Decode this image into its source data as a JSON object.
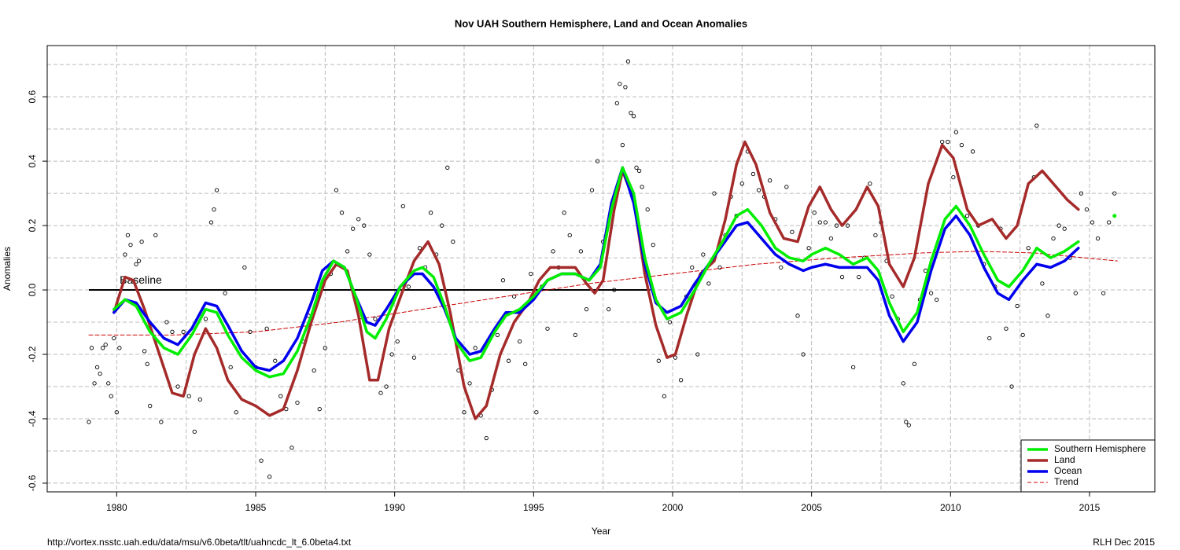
{
  "chart_data": {
    "type": "line",
    "title": "Nov UAH Southern Hemisphere, Land and Ocean Anomalies",
    "xlabel": "Year",
    "ylabel": "Anomalies",
    "source": "http://vortex.nsstc.uah.edu/data/msu/v6.0beta/tlt/uahncdc_lt_6.0beta4.txt",
    "credit": "RLH Dec 2015",
    "xlim": [
      1977.5,
      2017.35
    ],
    "ylim": [
      -0.627,
      0.759
    ],
    "xticks": [
      1980,
      1985,
      1990,
      1995,
      2000,
      2005,
      2010,
      2015
    ],
    "yticks": [
      -0.6,
      -0.4,
      -0.2,
      {
        "value": 0,
        "label": "0.0"
      },
      0.2,
      0.4,
      0.6
    ],
    "grid": true,
    "xgrid": [
      1977.5,
      1980,
      1982.5,
      1985,
      1987.5,
      1990,
      1992.5,
      1995,
      1997.5,
      2000,
      2002.5,
      2005,
      2007.5,
      2010,
      2012.5,
      2015
    ],
    "ygrid": [
      -0.6,
      -0.5,
      -0.4,
      -0.3,
      -0.2,
      -0.1,
      0,
      0.1,
      0.2,
      0.3,
      0.4,
      0.5,
      0.6,
      0.7
    ],
    "legend": "bottom-right",
    "baseline": {
      "label": "Baseline",
      "y": 0,
      "x": [
        1979,
        1999.2
      ],
      "color": "#000000"
    },
    "points": {
      "color": "#000000",
      "x": [
        1979.0,
        1979.1,
        1979.2,
        1979.3,
        1979.4,
        1979.5,
        1979.6,
        1979.7,
        1979.8,
        1979.9,
        1980.0,
        1980.1,
        1980.3,
        1980.4,
        1980.5,
        1980.7,
        1980.8,
        1980.9,
        1981.0,
        1981.1,
        1981.2,
        1981.4,
        1981.6,
        1981.8,
        1982.0,
        1982.2,
        1982.4,
        1982.6,
        1982.8,
        1983.0,
        1983.2,
        1983.4,
        1983.5,
        1983.6,
        1983.9,
        1984.1,
        1984.3,
        1984.6,
        1984.8,
        1985.0,
        1985.2,
        1985.4,
        1985.5,
        1985.7,
        1985.9,
        1986.1,
        1986.3,
        1986.5,
        1986.7,
        1986.9,
        1987.1,
        1987.3,
        1987.5,
        1987.7,
        1987.9,
        1988.1,
        1988.3,
        1988.5,
        1988.7,
        1988.9,
        1989.1,
        1989.3,
        1989.5,
        1989.7,
        1989.9,
        1990.1,
        1990.3,
        1990.5,
        1990.7,
        1990.9,
        1991.1,
        1991.3,
        1991.5,
        1991.7,
        1991.9,
        1992.1,
        1992.3,
        1992.5,
        1992.7,
        1992.9,
        1993.1,
        1993.3,
        1993.5,
        1993.7,
        1993.9,
        1994.1,
        1994.3,
        1994.5,
        1994.7,
        1994.9,
        1995.1,
        1995.3,
        1995.5,
        1995.7,
        1995.9,
        1996.1,
        1996.3,
        1996.5,
        1996.7,
        1996.9,
        1997.1,
        1997.3,
        1997.5,
        1997.7,
        1997.9,
        1998.0,
        1998.1,
        1998.2,
        1998.3,
        1998.4,
        1998.5,
        1998.6,
        1998.7,
        1998.8,
        1998.9,
        1999.1,
        1999.3,
        1999.5,
        1999.7,
        1999.9,
        2000.1,
        2000.3,
        2000.5,
        2000.7,
        2000.9,
        2001.1,
        2001.3,
        2001.5,
        2001.7,
        2001.9,
        2002.1,
        2002.3,
        2002.5,
        2002.7,
        2002.9,
        2003.1,
        2003.3,
        2003.5,
        2003.7,
        2003.9,
        2004.1,
        2004.3,
        2004.5,
        2004.7,
        2004.9,
        2005.1,
        2005.3,
        2005.5,
        2005.7,
        2005.9,
        2006.1,
        2006.3,
        2006.5,
        2006.7,
        2006.9,
        2007.1,
        2007.3,
        2007.5,
        2007.7,
        2007.9,
        2008.1,
        2008.3,
        2008.4,
        2008.5,
        2008.7,
        2008.9,
        2009.1,
        2009.3,
        2009.5,
        2009.7,
        2009.9,
        2010.1,
        2010.2,
        2010.4,
        2010.6,
        2010.8,
        2011.0,
        2011.2,
        2011.4,
        2011.6,
        2011.8,
        2012.0,
        2012.2,
        2012.4,
        2012.6,
        2012.8,
        2013.0,
        2013.1,
        2013.3,
        2013.5,
        2013.7,
        2013.9,
        2014.1,
        2014.3,
        2014.5,
        2014.7,
        2014.9,
        2015.1,
        2015.3,
        2015.5,
        2015.7,
        2015.9
      ],
      "values": [
        -0.41,
        -0.18,
        -0.29,
        -0.24,
        -0.26,
        -0.18,
        -0.17,
        -0.29,
        -0.33,
        -0.15,
        -0.38,
        -0.18,
        0.11,
        0.17,
        0.14,
        0.08,
        0.09,
        0.15,
        -0.19,
        -0.23,
        -0.36,
        0.17,
        -0.41,
        -0.1,
        -0.13,
        -0.3,
        -0.13,
        -0.33,
        -0.44,
        -0.34,
        -0.09,
        0.21,
        0.25,
        0.31,
        -0.01,
        -0.24,
        -0.38,
        0.07,
        -0.13,
        -0.24,
        -0.53,
        -0.12,
        -0.58,
        -0.22,
        -0.33,
        -0.37,
        -0.49,
        -0.35,
        -0.16,
        -0.08,
        -0.25,
        -0.37,
        -0.18,
        0.05,
        0.31,
        0.24,
        0.12,
        0.19,
        0.22,
        0.2,
        0.11,
        -0.09,
        -0.32,
        -0.3,
        -0.2,
        -0.16,
        0.26,
        0.01,
        -0.21,
        0.13,
        0.07,
        0.24,
        0.11,
        0.2,
        0.38,
        0.15,
        -0.25,
        -0.38,
        -0.29,
        -0.18,
        -0.39,
        -0.46,
        -0.31,
        -0.14,
        0.03,
        -0.22,
        -0.02,
        -0.16,
        -0.23,
        0.05,
        -0.38,
        0.01,
        -0.12,
        0.12,
        0.07,
        0.24,
        0.17,
        -0.14,
        0.12,
        -0.06,
        0.31,
        0.4,
        0.15,
        -0.06,
        0.0,
        0.58,
        0.64,
        0.45,
        0.63,
        0.71,
        0.55,
        0.54,
        0.38,
        0.37,
        0.32,
        0.25,
        0.14,
        -0.22,
        -0.33,
        -0.1,
        -0.21,
        -0.28,
        -0.02,
        0.07,
        -0.2,
        0.11,
        0.02,
        0.3,
        0.07,
        0.17,
        0.29,
        0.23,
        0.33,
        0.43,
        0.36,
        0.31,
        0.29,
        0.34,
        0.22,
        0.07,
        0.32,
        0.18,
        -0.08,
        -0.2,
        0.13,
        0.24,
        0.21,
        0.21,
        0.16,
        0.2,
        0.04,
        0.2,
        -0.24,
        0.04,
        0.1,
        0.33,
        0.17,
        0.21,
        0.09,
        -0.02,
        -0.09,
        -0.29,
        -0.41,
        -0.42,
        -0.23,
        -0.03,
        0.06,
        -0.01,
        -0.03,
        0.46,
        0.46,
        0.35,
        0.49,
        0.45,
        0.23,
        0.43,
        0.2,
        0.08,
        -0.15,
        0.01,
        0.19,
        -0.12,
        -0.3,
        -0.05,
        -0.14,
        0.13,
        0.35,
        0.51,
        0.02,
        -0.08,
        0.16,
        0.2,
        0.19,
        0.1,
        -0.01,
        0.3,
        0.25,
        0.21,
        0.16,
        -0.01,
        0.21,
        0.3
      ]
    },
    "series": [
      {
        "name": "Southern Hemisphere",
        "color": "#00ee00",
        "width": 3.5,
        "x": [
          1979.9,
          1980.3,
          1980.7,
          1981.2,
          1981.7,
          1982.2,
          1982.7,
          1983.2,
          1983.6,
          1984.0,
          1984.5,
          1985.0,
          1985.5,
          1986.0,
          1986.5,
          1987.0,
          1987.4,
          1987.8,
          1988.2,
          1988.6,
          1989.0,
          1989.3,
          1989.7,
          1990.2,
          1990.7,
          1991.0,
          1991.4,
          1991.8,
          1992.2,
          1992.7,
          1993.1,
          1993.6,
          1994.0,
          1994.5,
          1995.0,
          1995.5,
          1996.0,
          1996.5,
          1997.0,
          1997.4,
          1997.8,
          1998.2,
          1998.6,
          1999.0,
          1999.4,
          1999.8,
          2000.3,
          2000.8,
          2001.3,
          2001.8,
          2002.3,
          2002.7,
          2003.2,
          2003.7,
          2004.2,
          2004.7,
          2005.0,
          2005.5,
          2006.0,
          2006.5,
          2007.0,
          2007.4,
          2007.8,
          2008.3,
          2008.8,
          2009.3,
          2009.8,
          2010.2,
          2010.7,
          2011.2,
          2011.7,
          2012.1,
          2012.6,
          2013.1,
          2013.6,
          2014.1,
          2014.6,
          2015.2,
          2015.9
        ],
        "values": [
          -0.06,
          -0.03,
          -0.05,
          -0.13,
          -0.18,
          -0.2,
          -0.14,
          -0.06,
          -0.07,
          -0.14,
          -0.21,
          -0.25,
          -0.27,
          -0.26,
          -0.19,
          -0.08,
          0.03,
          0.09,
          0.07,
          -0.02,
          -0.13,
          -0.15,
          -0.09,
          0.01,
          0.06,
          0.07,
          0.04,
          -0.05,
          -0.16,
          -0.22,
          -0.21,
          -0.13,
          -0.08,
          -0.06,
          -0.02,
          0.03,
          0.05,
          0.05,
          0.03,
          0.07,
          0.25,
          0.38,
          0.3,
          0.1,
          -0.03,
          -0.09,
          -0.07,
          0.0,
          0.08,
          0.15,
          0.23,
          0.25,
          0.2,
          0.13,
          0.1,
          0.09,
          0.11,
          0.13,
          0.11,
          0.08,
          0.1,
          0.06,
          -0.04,
          -0.13,
          -0.07,
          0.09,
          0.22,
          0.26,
          0.2,
          0.11,
          0.03,
          0.01,
          0.06,
          0.13,
          0.1,
          0.12,
          0.15,
          null,
          0.23
        ]
      },
      {
        "name": "Land",
        "color": "#a52a2a",
        "width": 3.5,
        "x": [
          1979.9,
          1980.3,
          1980.6,
          1981.0,
          1981.5,
          1982.0,
          1982.4,
          1982.8,
          1983.2,
          1983.6,
          1984.0,
          1984.5,
          1985.0,
          1985.5,
          1986.0,
          1986.5,
          1987.0,
          1987.5,
          1987.9,
          1988.3,
          1988.7,
          1989.1,
          1989.4,
          1989.8,
          1990.3,
          1990.7,
          1991.2,
          1991.6,
          1992.0,
          1992.5,
          1992.9,
          1993.3,
          1993.8,
          1994.3,
          1994.8,
          1995.2,
          1995.6,
          1996.0,
          1996.5,
          1996.9,
          1997.2,
          1997.5,
          1997.9,
          1998.2,
          1998.6,
          1999.0,
          1999.4,
          1999.8,
          2000.1,
          2000.5,
          2001.0,
          2001.5,
          2001.9,
          2002.3,
          2002.6,
          2003.0,
          2003.5,
          2004.0,
          2004.5,
          2004.9,
          2005.3,
          2005.7,
          2006.1,
          2006.6,
          2007.0,
          2007.4,
          2007.8,
          2008.3,
          2008.7,
          2009.2,
          2009.7,
          2010.1,
          2010.6,
          2011.0,
          2011.5,
          2012.0,
          2012.4,
          2012.8,
          2013.3,
          2013.8,
          2014.2,
          2014.6
        ],
        "values": [
          -0.07,
          0.04,
          0.03,
          -0.06,
          -0.19,
          -0.32,
          -0.33,
          -0.2,
          -0.12,
          -0.18,
          -0.28,
          -0.34,
          -0.36,
          -0.39,
          -0.37,
          -0.25,
          -0.1,
          0.03,
          0.08,
          0.06,
          -0.08,
          -0.28,
          -0.28,
          -0.12,
          0.0,
          0.09,
          0.15,
          0.08,
          -0.07,
          -0.3,
          -0.4,
          -0.36,
          -0.2,
          -0.1,
          -0.04,
          0.03,
          0.07,
          0.07,
          0.07,
          0.02,
          -0.01,
          0.03,
          0.25,
          0.37,
          0.28,
          0.05,
          -0.11,
          -0.21,
          -0.2,
          -0.08,
          0.05,
          0.09,
          0.22,
          0.39,
          0.46,
          0.39,
          0.24,
          0.16,
          0.15,
          0.26,
          0.32,
          0.25,
          0.2,
          0.25,
          0.32,
          0.26,
          0.08,
          0.01,
          0.1,
          0.33,
          0.45,
          0.41,
          0.25,
          0.2,
          0.22,
          0.16,
          0.2,
          0.33,
          0.37,
          0.32,
          0.28,
          0.25
        ]
      },
      {
        "name": "Ocean",
        "color": "#0000ee",
        "width": 3.5,
        "x": [
          1979.9,
          1980.3,
          1980.7,
          1981.2,
          1981.7,
          1982.2,
          1982.7,
          1983.2,
          1983.6,
          1984.0,
          1984.5,
          1985.0,
          1985.5,
          1986.0,
          1986.5,
          1987.0,
          1987.4,
          1987.8,
          1988.2,
          1988.6,
          1989.0,
          1989.3,
          1989.7,
          1990.2,
          1990.7,
          1991.0,
          1991.4,
          1991.8,
          1992.2,
          1992.7,
          1993.1,
          1993.6,
          1994.0,
          1994.5,
          1995.0,
          1995.5,
          1996.0,
          1996.5,
          1997.0,
          1997.4,
          1997.8,
          1998.2,
          1998.6,
          1999.0,
          1999.4,
          1999.8,
          2000.3,
          2000.8,
          2001.3,
          2001.8,
          2002.3,
          2002.7,
          2003.2,
          2003.7,
          2004.2,
          2004.7,
          2005.0,
          2005.5,
          2006.0,
          2006.5,
          2007.0,
          2007.4,
          2007.8,
          2008.3,
          2008.8,
          2009.3,
          2009.8,
          2010.2,
          2010.7,
          2011.2,
          2011.7,
          2012.1,
          2012.6,
          2013.1,
          2013.6,
          2014.1,
          2014.6
        ],
        "values": [
          -0.07,
          -0.03,
          -0.04,
          -0.1,
          -0.15,
          -0.17,
          -0.12,
          -0.04,
          -0.05,
          -0.11,
          -0.19,
          -0.24,
          -0.25,
          -0.22,
          -0.15,
          -0.04,
          0.06,
          0.09,
          0.07,
          -0.02,
          -0.1,
          -0.11,
          -0.06,
          0.01,
          0.05,
          0.05,
          0.01,
          -0.06,
          -0.15,
          -0.2,
          -0.19,
          -0.12,
          -0.07,
          -0.07,
          -0.03,
          0.03,
          0.05,
          0.05,
          0.03,
          0.08,
          0.27,
          0.38,
          0.27,
          0.08,
          -0.04,
          -0.07,
          -0.05,
          0.02,
          0.08,
          0.14,
          0.2,
          0.21,
          0.16,
          0.11,
          0.08,
          0.06,
          0.07,
          0.08,
          0.07,
          0.07,
          0.07,
          0.03,
          -0.08,
          -0.16,
          -0.1,
          0.06,
          0.19,
          0.23,
          0.17,
          0.07,
          -0.01,
          -0.03,
          0.03,
          0.08,
          0.07,
          0.09,
          0.13
        ]
      },
      {
        "name": "Trend",
        "color": "#cc0000",
        "width": 1,
        "dash": true,
        "x": [
          1979,
          1982,
          1985,
          1988,
          1991,
          1994,
          1997,
          2000,
          2003,
          2006,
          2009,
          2011,
          2013,
          2016
        ],
        "values": [
          -0.14,
          -0.14,
          -0.13,
          -0.1,
          -0.06,
          -0.02,
          0.02,
          0.05,
          0.08,
          0.1,
          0.115,
          0.12,
          0.115,
          0.09
        ]
      }
    ]
  }
}
